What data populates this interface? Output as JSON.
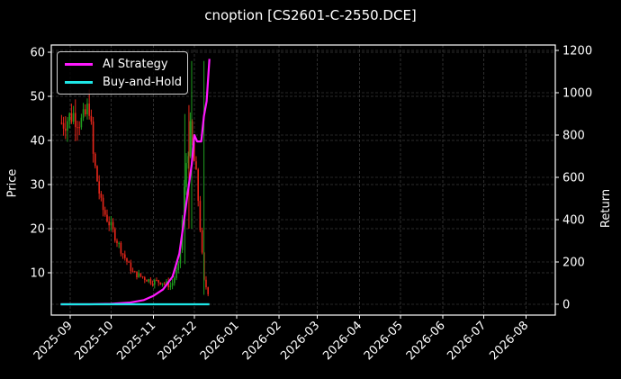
{
  "chart_data": {
    "type": "line",
    "title": "cnoption [CS2601-C-2550.DCE]",
    "xlabel": "",
    "ylabel": "Price",
    "ylabel_right": "Return",
    "ylim": [
      1,
      61
    ],
    "ylim_right": [
      -45,
      1210
    ],
    "yticks_left": [
      10,
      20,
      30,
      40,
      50,
      60
    ],
    "yticks_right": [
      0,
      200,
      400,
      600,
      800,
      1000,
      1200
    ],
    "xticks": [
      "2025-09",
      "2025-10",
      "2025-11",
      "2025-12",
      "2026-01",
      "2026-02",
      "2026-03",
      "2026-04",
      "2026-05",
      "2026-06",
      "2026-07",
      "2026-08"
    ],
    "grid": true,
    "legend_position": "upper left",
    "candlestick": {
      "description": "Daily price candles (green=up, red=down) on left axis",
      "approx_close": [
        {
          "x": "2025-08-27",
          "price": 44
        },
        {
          "x": "2025-09-03",
          "price": 46
        },
        {
          "x": "2025-09-10",
          "price": 44
        },
        {
          "x": "2025-09-15",
          "price": 48
        },
        {
          "x": "2025-09-18",
          "price": 36
        },
        {
          "x": "2025-09-24",
          "price": 25
        },
        {
          "x": "2025-09-30",
          "price": 21
        },
        {
          "x": "2025-10-10",
          "price": 14
        },
        {
          "x": "2025-10-17",
          "price": 10
        },
        {
          "x": "2025-10-24",
          "price": 9
        },
        {
          "x": "2025-10-31",
          "price": 8
        },
        {
          "x": "2025-11-07",
          "price": 8
        },
        {
          "x": "2025-11-14",
          "price": 7
        },
        {
          "x": "2025-11-20",
          "price": 12
        },
        {
          "x": "2025-11-25",
          "price": 35
        },
        {
          "x": "2025-11-28",
          "price": 42
        },
        {
          "x": "2025-12-03",
          "price": 30
        },
        {
          "x": "2025-12-08",
          "price": 8
        },
        {
          "x": "2025-12-12",
          "price": 5
        }
      ]
    },
    "series": [
      {
        "name": "AI Strategy",
        "color": "#ff19ff",
        "axis": "right",
        "x": [
          "2025-08-25",
          "2025-09-15",
          "2025-10-01",
          "2025-10-15",
          "2025-10-25",
          "2025-11-01",
          "2025-11-08",
          "2025-11-15",
          "2025-11-20",
          "2025-11-23",
          "2025-11-26",
          "2025-11-29",
          "2025-12-01",
          "2025-12-03",
          "2025-12-06",
          "2025-12-08",
          "2025-12-10",
          "2025-12-12"
        ],
        "values": [
          0,
          0,
          2,
          8,
          20,
          40,
          70,
          130,
          240,
          380,
          520,
          660,
          800,
          770,
          770,
          890,
          960,
          1160
        ]
      },
      {
        "name": "Buy-and-Hold",
        "color": "#1ee6e6",
        "axis": "right",
        "x": [
          "2025-08-25",
          "2025-12-12"
        ],
        "values": [
          0,
          0
        ]
      }
    ]
  },
  "figure": {
    "title": "cnoption [CS2601-C-2550.DCE]",
    "left_axis_label": "Price",
    "right_axis_label": "Return",
    "legend": [
      {
        "label": "AI Strategy",
        "color": "#ff19ff"
      },
      {
        "label": "Buy-and-Hold",
        "color": "#1ee6e6"
      }
    ],
    "colors": {
      "background": "#000000",
      "up_candle": "#1f9e1f",
      "down_candle": "#e8261a",
      "grid": "#444444"
    }
  }
}
